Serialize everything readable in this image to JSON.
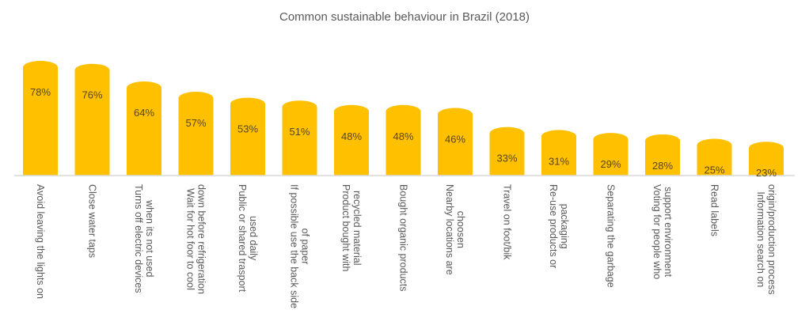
{
  "chart_data": {
    "type": "bar",
    "title": "Common sustainable behaviour in Brazil (2018)",
    "xlabel": "",
    "ylabel": "",
    "ylim": [
      0,
      100
    ],
    "grid": false,
    "legend": "none",
    "value_suffix": "%",
    "bar_color": "#FFC000",
    "categories": [
      [
        "Avoid leaving the lights on"
      ],
      [
        "Close water taps"
      ],
      [
        "Turns off electric devices",
        "when its not used"
      ],
      [
        "Wait for hot foor to cool",
        "down before refrigeration"
      ],
      [
        "Public or shared trasport",
        "used daily"
      ],
      [
        "If possible use the back side",
        "of paper"
      ],
      [
        "Product bought with",
        "recycled material"
      ],
      [
        "Bought organic products"
      ],
      [
        "Nearby locations are",
        "choosen"
      ],
      [
        "Travel on foot/bik"
      ],
      [
        "Re-use products or",
        "packaging"
      ],
      [
        "Separating the garbage"
      ],
      [
        "Voting for people who",
        "support environment"
      ],
      [
        "Read labels"
      ],
      [
        "Information search on",
        "origin/production process"
      ]
    ],
    "values": [
      78,
      76,
      64,
      57,
      53,
      51,
      48,
      48,
      46,
      33,
      31,
      29,
      28,
      25,
      23
    ],
    "data_labels": [
      "78%",
      "76%",
      "64%",
      "57%",
      "53%",
      "51%",
      "48%",
      "48%",
      "46%",
      "33%",
      "31%",
      "29%",
      "28%",
      "25%",
      "23%"
    ]
  }
}
